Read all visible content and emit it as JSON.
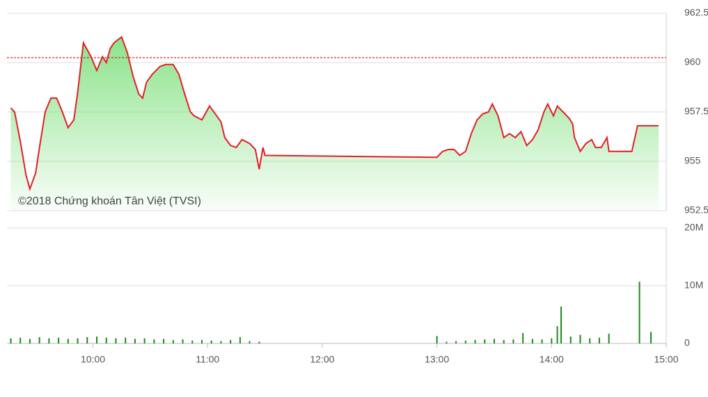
{
  "chart_data": [
    {
      "type": "line",
      "annotation": "©2018 Chứng khoán Tân Việt (TVSI)",
      "x": [
        "9:17",
        "9:19",
        "9:22",
        "9:25",
        "9:27",
        "9:30",
        "9:32",
        "9:35",
        "9:38",
        "9:41",
        "9:44",
        "9:47",
        "9:50",
        "9:52",
        "9:55",
        "9:59",
        "10:02",
        "10:05",
        "10:07",
        "10:09",
        "10:11",
        "10:15",
        "10:18",
        "10:21",
        "10:24",
        "10:26",
        "10:28",
        "10:31",
        "10:35",
        "10:38",
        "10:42",
        "10:45",
        "10:48",
        "10:51",
        "10:53",
        "10:57",
        "11:01",
        "11:04",
        "11:07",
        "11:09",
        "11:12",
        "11:15",
        "11:18",
        "11:22",
        "11:25",
        "11:27",
        "11:29",
        "11:30",
        "13:00",
        "13:03",
        "13:06",
        "13:09",
        "13:12",
        "13:15",
        "13:18",
        "13:21",
        "13:24",
        "13:27",
        "13:29",
        "13:32",
        "13:35",
        "13:38",
        "13:41",
        "13:44",
        "13:47",
        "13:50",
        "13:53",
        "13:56",
        "13:58",
        "14:01",
        "14:03",
        "14:06",
        "14:09",
        "14:11",
        "14:12",
        "14:15",
        "14:18",
        "14:21",
        "14:23",
        "14:26",
        "14:29",
        "14:30",
        "14:42",
        "14:45",
        "14:56"
      ],
      "values": [
        957.7,
        957.5,
        956,
        954.3,
        953.6,
        954.4,
        955.7,
        957.5,
        958.2,
        958.2,
        957.5,
        956.7,
        957.1,
        958.5,
        961,
        960.3,
        959.6,
        960.3,
        960,
        960.7,
        961,
        961.3,
        960.5,
        959.3,
        958.4,
        958.2,
        959,
        959.4,
        959.8,
        959.9,
        959.9,
        959.4,
        958.4,
        957.5,
        957.3,
        957.1,
        957.8,
        957.4,
        957,
        956.2,
        955.8,
        955.7,
        956.1,
        955.9,
        955.6,
        954.6,
        955.7,
        955.3,
        955.2,
        955.5,
        955.6,
        955.6,
        955.3,
        955.5,
        956.4,
        957.1,
        957.4,
        957.5,
        957.9,
        957.3,
        956.2,
        956.4,
        956.2,
        956.5,
        955.8,
        956.1,
        956.6,
        957.5,
        957.9,
        957.3,
        957.8,
        957.5,
        957.2,
        956.9,
        956.2,
        955.5,
        955.9,
        956.1,
        955.7,
        955.7,
        956.2,
        955.5,
        955.5,
        956.8,
        956.8
      ],
      "color": "#e31e24",
      "area_color": "#7ee07e",
      "reference_line": 960.25,
      "reference_color": "#e31e24",
      "xlim": [
        "9:15",
        "15:00"
      ],
      "ylim": [
        952.5,
        962.5
      ],
      "yticks": [
        962.5,
        960,
        957.5,
        955,
        952.5
      ],
      "grid": true
    },
    {
      "type": "bar",
      "x": [
        "9:17",
        "9:22",
        "9:27",
        "9:32",
        "9:37",
        "9:42",
        "9:47",
        "9:52",
        "9:57",
        "10:02",
        "10:07",
        "10:12",
        "10:17",
        "10:22",
        "10:27",
        "10:32",
        "10:37",
        "10:42",
        "10:47",
        "10:52",
        "10:57",
        "11:02",
        "11:07",
        "11:12",
        "11:17",
        "11:22",
        "11:27",
        "13:00",
        "13:05",
        "13:10",
        "13:15",
        "13:20",
        "13:25",
        "13:30",
        "13:35",
        "13:40",
        "13:45",
        "13:50",
        "13:55",
        "14:00",
        "14:03",
        "14:05",
        "14:10",
        "14:15",
        "14:20",
        "14:25",
        "14:30",
        "14:46",
        "14:52"
      ],
      "values": [
        900000,
        1000000,
        800000,
        1100000,
        900000,
        1000000,
        800000,
        900000,
        1100000,
        1200000,
        1000000,
        900000,
        1000000,
        800000,
        900000,
        700000,
        800000,
        600000,
        700000,
        500000,
        600000,
        500000,
        400000,
        600000,
        1100000,
        400000,
        300000,
        1300000,
        300000,
        400000,
        500000,
        600000,
        700000,
        800000,
        600000,
        700000,
        1800000,
        800000,
        700000,
        900000,
        3000000,
        6400000,
        1200000,
        1500000,
        900000,
        1000000,
        1700000,
        10700000,
        2000000
      ],
      "color": "#1a8a1a",
      "xlim": [
        "9:15",
        "15:00"
      ],
      "xticks": [
        "10:00",
        "11:00",
        "12:00",
        "13:00",
        "14:00",
        "15:00"
      ],
      "ylim": [
        0,
        20000000
      ],
      "yticks": [
        0,
        {
          "value": 10000000,
          "label": "10M"
        },
        {
          "value": 20000000,
          "label": "20M"
        }
      ],
      "grid": true
    }
  ]
}
